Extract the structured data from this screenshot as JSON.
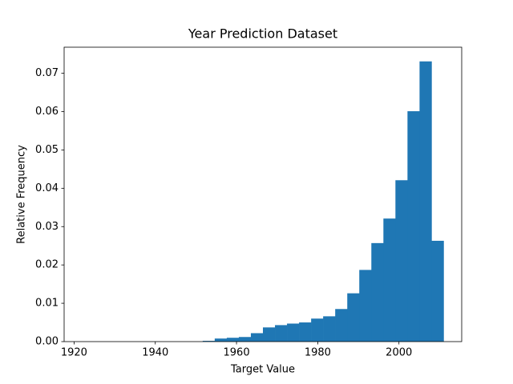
{
  "chart_data": {
    "type": "histogram",
    "title": "Year Prediction Dataset",
    "x_label": "Target Value",
    "y_label": "Relative Frequency",
    "bins": [
      1922,
      1924.97,
      1927.93,
      1930.9,
      1933.87,
      1936.83,
      1939.8,
      1942.77,
      1945.73,
      1948.7,
      1951.67,
      1954.63,
      1957.6,
      1960.57,
      1963.53,
      1966.5,
      1969.47,
      1972.43,
      1975.4,
      1978.37,
      1981.33,
      1984.3,
      1987.27,
      1990.23,
      1993.2,
      1996.17,
      1999.13,
      2002.1,
      2005.07,
      2008.03,
      2011
    ],
    "values": [
      0,
      0,
      0,
      0,
      0,
      0,
      0,
      0,
      0,
      0,
      0.0002,
      0.0008,
      0.001,
      0.0012,
      0.0022,
      0.0037,
      0.0043,
      0.0047,
      0.005,
      0.006,
      0.0066,
      0.0085,
      0.0126,
      0.0187,
      0.0257,
      0.0321,
      0.0421,
      0.0601,
      0.0731,
      0.0263
    ],
    "color": "#1f77b4",
    "xlim": [
      1917.55,
      2015.45
    ],
    "xticks": [
      1920,
      1940,
      1960,
      1980,
      2000
    ],
    "ylim": [
      0,
      0.0768
    ],
    "yticks": [
      {
        "value": 0,
        "label": "0.00"
      },
      {
        "value": 0.01,
        "label": "0.01"
      },
      {
        "value": 0.02,
        "label": "0.02"
      },
      {
        "value": 0.03,
        "label": "0.03"
      },
      {
        "value": 0.04,
        "label": "0.04"
      },
      {
        "value": 0.05,
        "label": "0.05"
      },
      {
        "value": 0.06,
        "label": "0.06"
      },
      {
        "value": 0.07,
        "label": "0.07"
      }
    ]
  }
}
